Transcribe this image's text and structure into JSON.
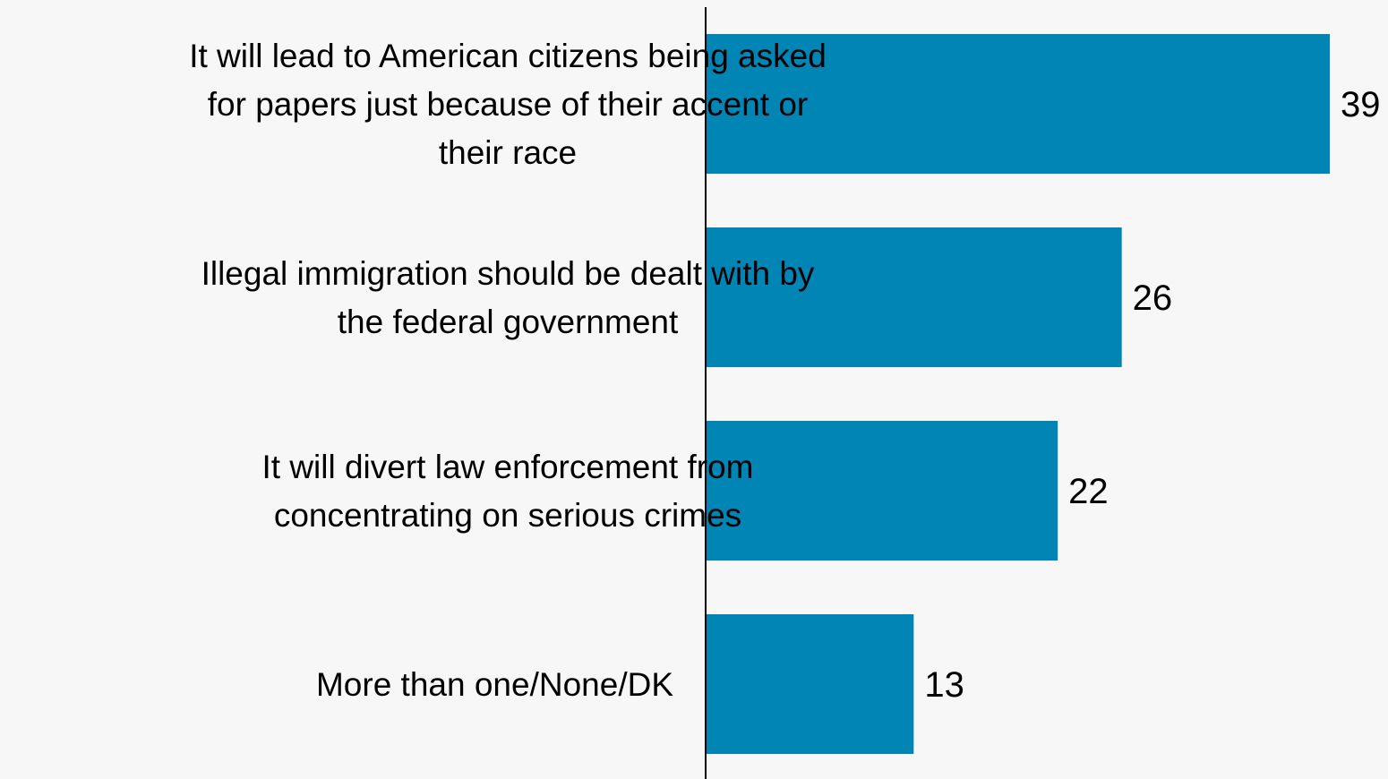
{
  "chart_data": {
    "type": "bar",
    "orientation": "horizontal",
    "categories": [
      [
        "It will lead to American citizens being asked",
        "for papers just because of their accent or",
        "their race"
      ],
      [
        "Illegal immigration should be dealt with by",
        "the federal government"
      ],
      [
        "It will divert law enforcement from",
        "concentrating on serious crimes"
      ],
      [
        "More than one/None/DK"
      ]
    ],
    "values": [
      39,
      26,
      22,
      13
    ],
    "data_labels": [
      "39",
      "26",
      "22",
      "13"
    ],
    "title": "",
    "xlabel": "",
    "ylabel": "",
    "xlim": [
      0,
      39
    ],
    "grid": false,
    "legend": "none",
    "bar_color": "#0085b4",
    "background_color": "#f7f7f7"
  }
}
